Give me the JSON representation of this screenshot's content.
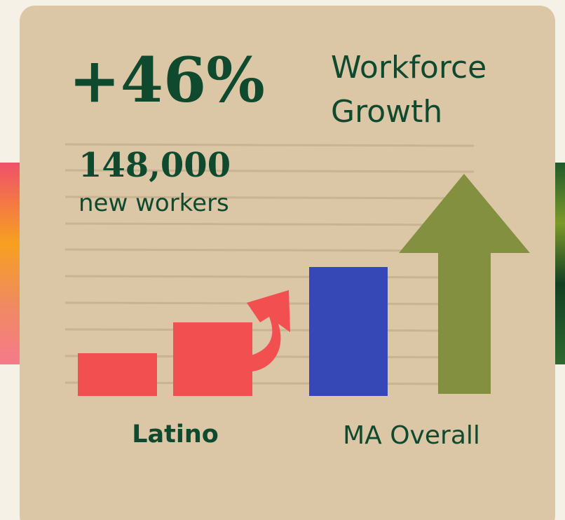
{
  "headline": {
    "figure": "+46%",
    "title_lines": [
      "Workforce",
      "Growth"
    ]
  },
  "subhead": {
    "figure": "148,000",
    "caption": "new workers"
  },
  "labels": [
    "Latino",
    "MA Overall"
  ]
}
